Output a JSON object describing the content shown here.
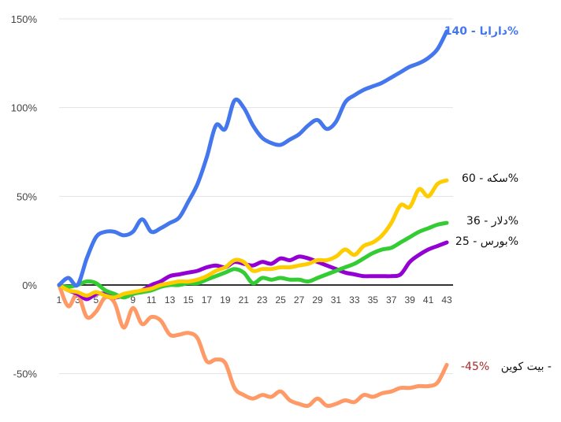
{
  "chart_data": {
    "type": "line",
    "x_ticks": [
      "1",
      "3",
      "5",
      "7",
      "9",
      "11",
      "13",
      "15",
      "17",
      "19",
      "21",
      "23",
      "25",
      "27",
      "29",
      "31",
      "33",
      "35",
      "37",
      "39",
      "41",
      "43"
    ],
    "ylim": [
      -70,
      150
    ],
    "y_ticks": [
      {
        "value": 150,
        "label": "150%"
      },
      {
        "value": 100,
        "label": "100%"
      },
      {
        "value": 50,
        "label": "50%"
      },
      {
        "value": 0,
        "label": "0%"
      },
      {
        "value": -50,
        "label": "-50%"
      }
    ],
    "grid": true,
    "series": [
      {
        "key": "bitcoin",
        "color": "#ff9966",
        "label": "بیت کوین - ",
        "value_label": "-45%",
        "value_color": "#a52a2a",
        "points": [
          [
            1,
            0
          ],
          [
            2,
            -12
          ],
          [
            3,
            -5
          ],
          [
            4,
            -18
          ],
          [
            5,
            -15
          ],
          [
            6,
            -7
          ],
          [
            7,
            -10
          ],
          [
            8,
            -24
          ],
          [
            9,
            -13
          ],
          [
            10,
            -22
          ],
          [
            11,
            -18
          ],
          [
            12,
            -20
          ],
          [
            13,
            -28
          ],
          [
            14,
            -28
          ],
          [
            15,
            -27
          ],
          [
            16,
            -30
          ],
          [
            17,
            -43
          ],
          [
            18,
            -42
          ],
          [
            19,
            -44
          ],
          [
            20,
            -58
          ],
          [
            21,
            -62
          ],
          [
            22,
            -64
          ],
          [
            23,
            -62
          ],
          [
            24,
            -63
          ],
          [
            25,
            -60
          ],
          [
            26,
            -65
          ],
          [
            27,
            -67
          ],
          [
            28,
            -68
          ],
          [
            29,
            -64
          ],
          [
            30,
            -68
          ],
          [
            31,
            -67
          ],
          [
            32,
            -65
          ],
          [
            33,
            -66
          ],
          [
            34,
            -62
          ],
          [
            35,
            -63
          ],
          [
            36,
            -61
          ],
          [
            37,
            -60
          ],
          [
            38,
            -58
          ],
          [
            39,
            -58
          ],
          [
            40,
            -57
          ],
          [
            41,
            -57
          ],
          [
            42,
            -55
          ],
          [
            43,
            -45
          ]
        ]
      },
      {
        "key": "boors",
        "color": "#9400d3",
        "label": "بورس - 25%",
        "points": [
          [
            1,
            0
          ],
          [
            2,
            -3
          ],
          [
            3,
            -5
          ],
          [
            4,
            -8
          ],
          [
            5,
            -5
          ],
          [
            6,
            -5
          ],
          [
            7,
            -7
          ],
          [
            8,
            -6
          ],
          [
            9,
            -5
          ],
          [
            10,
            -3
          ],
          [
            11,
            0
          ],
          [
            12,
            2
          ],
          [
            13,
            5
          ],
          [
            14,
            6
          ],
          [
            15,
            7
          ],
          [
            16,
            8
          ],
          [
            17,
            10
          ],
          [
            18,
            11
          ],
          [
            19,
            10
          ],
          [
            20,
            13
          ],
          [
            21,
            12
          ],
          [
            22,
            11
          ],
          [
            23,
            13
          ],
          [
            24,
            12
          ],
          [
            25,
            15
          ],
          [
            26,
            14
          ],
          [
            27,
            16
          ],
          [
            28,
            15
          ],
          [
            29,
            13
          ],
          [
            30,
            11
          ],
          [
            31,
            9
          ],
          [
            32,
            7
          ],
          [
            33,
            6
          ],
          [
            34,
            5
          ],
          [
            35,
            5
          ],
          [
            36,
            5
          ],
          [
            37,
            5
          ],
          [
            38,
            6
          ],
          [
            39,
            13
          ],
          [
            40,
            17
          ],
          [
            41,
            20
          ],
          [
            42,
            22
          ],
          [
            43,
            24
          ]
        ]
      },
      {
        "key": "dollar",
        "color": "#33cc33",
        "label": "دلار - 36%",
        "points": [
          [
            1,
            0
          ],
          [
            2,
            -1
          ],
          [
            3,
            0
          ],
          [
            4,
            2
          ],
          [
            5,
            1
          ],
          [
            6,
            -3
          ],
          [
            7,
            -5
          ],
          [
            8,
            -7
          ],
          [
            9,
            -5
          ],
          [
            10,
            -4
          ],
          [
            11,
            -3
          ],
          [
            12,
            -1
          ],
          [
            13,
            0
          ],
          [
            14,
            0
          ],
          [
            15,
            1
          ],
          [
            16,
            1
          ],
          [
            17,
            3
          ],
          [
            18,
            5
          ],
          [
            19,
            7
          ],
          [
            20,
            9
          ],
          [
            21,
            7
          ],
          [
            22,
            1
          ],
          [
            23,
            4
          ],
          [
            24,
            3
          ],
          [
            25,
            4
          ],
          [
            26,
            3
          ],
          [
            27,
            3
          ],
          [
            28,
            2
          ],
          [
            29,
            4
          ],
          [
            30,
            6
          ],
          [
            31,
            8
          ],
          [
            32,
            10
          ],
          [
            33,
            12
          ],
          [
            34,
            15
          ],
          [
            35,
            18
          ],
          [
            36,
            20
          ],
          [
            37,
            21
          ],
          [
            38,
            24
          ],
          [
            39,
            27
          ],
          [
            40,
            30
          ],
          [
            41,
            32
          ],
          [
            42,
            34
          ],
          [
            43,
            35
          ]
        ]
      },
      {
        "key": "sekkeh",
        "color": "#ffcc00",
        "label": "سکه - 60%",
        "points": [
          [
            1,
            0
          ],
          [
            2,
            -3
          ],
          [
            3,
            -4
          ],
          [
            4,
            -6
          ],
          [
            5,
            -4
          ],
          [
            6,
            -6
          ],
          [
            7,
            -7
          ],
          [
            8,
            -5
          ],
          [
            9,
            -4
          ],
          [
            10,
            -3
          ],
          [
            11,
            -2
          ],
          [
            12,
            0
          ],
          [
            13,
            1
          ],
          [
            14,
            2
          ],
          [
            15,
            2
          ],
          [
            16,
            3
          ],
          [
            17,
            5
          ],
          [
            18,
            8
          ],
          [
            19,
            10
          ],
          [
            20,
            14
          ],
          [
            21,
            13
          ],
          [
            22,
            8
          ],
          [
            23,
            9
          ],
          [
            24,
            9
          ],
          [
            25,
            10
          ],
          [
            26,
            10
          ],
          [
            27,
            11
          ],
          [
            28,
            12
          ],
          [
            29,
            14
          ],
          [
            30,
            14
          ],
          [
            31,
            16
          ],
          [
            32,
            20
          ],
          [
            33,
            17
          ],
          [
            34,
            22
          ],
          [
            35,
            24
          ],
          [
            36,
            28
          ],
          [
            37,
            35
          ],
          [
            38,
            45
          ],
          [
            39,
            44
          ],
          [
            40,
            54
          ],
          [
            41,
            50
          ],
          [
            42,
            57
          ],
          [
            43,
            59
          ]
        ]
      },
      {
        "key": "daraya",
        "color": "#4477ee",
        "label": "دارایا - 140%",
        "emphasis": true,
        "points": [
          [
            1,
            0
          ],
          [
            2,
            4
          ],
          [
            3,
            0
          ],
          [
            4,
            15
          ],
          [
            5,
            27
          ],
          [
            6,
            30
          ],
          [
            7,
            30
          ],
          [
            8,
            28
          ],
          [
            9,
            30
          ],
          [
            10,
            37
          ],
          [
            11,
            30
          ],
          [
            12,
            32
          ],
          [
            13,
            35
          ],
          [
            14,
            38
          ],
          [
            15,
            47
          ],
          [
            16,
            57
          ],
          [
            17,
            72
          ],
          [
            18,
            90
          ],
          [
            19,
            88
          ],
          [
            20,
            104
          ],
          [
            21,
            100
          ],
          [
            22,
            90
          ],
          [
            23,
            83
          ],
          [
            24,
            80
          ],
          [
            25,
            79
          ],
          [
            26,
            82
          ],
          [
            27,
            85
          ],
          [
            28,
            90
          ],
          [
            29,
            93
          ],
          [
            30,
            88
          ],
          [
            31,
            92
          ],
          [
            32,
            103
          ],
          [
            33,
            107
          ],
          [
            34,
            110
          ],
          [
            35,
            112
          ],
          [
            36,
            114
          ],
          [
            37,
            117
          ],
          [
            38,
            120
          ],
          [
            39,
            123
          ],
          [
            40,
            125
          ],
          [
            41,
            128
          ],
          [
            42,
            133
          ],
          [
            43,
            143
          ]
        ]
      }
    ]
  }
}
